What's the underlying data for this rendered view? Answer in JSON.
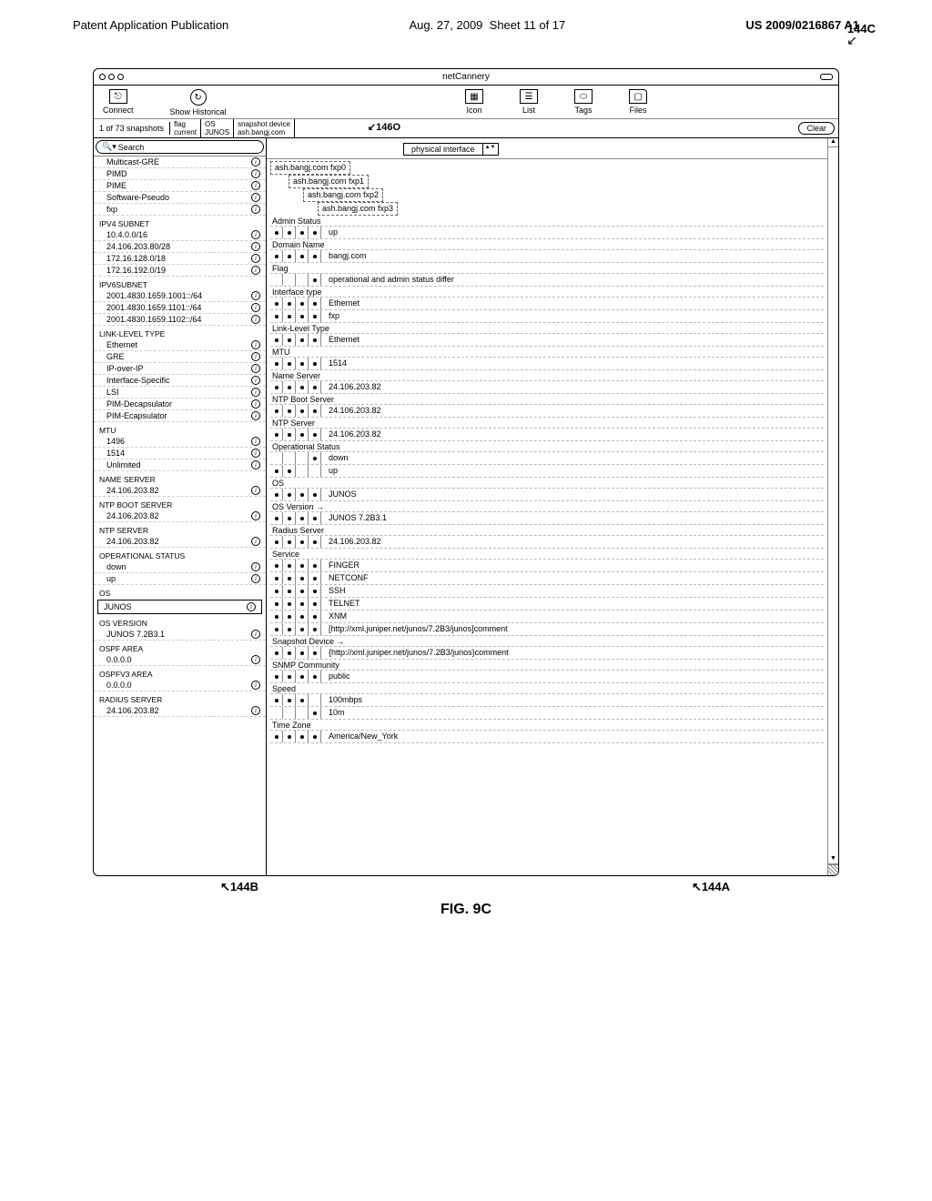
{
  "page_header": {
    "left": "Patent Application Publication",
    "date": "Aug. 27, 2009",
    "sheet": "Sheet 11 of 17",
    "docnum": "US 2009/0216867 A1"
  },
  "figure": {
    "caption": "FIG. 9C",
    "callout_144c": "144C",
    "callout_146o": "146O",
    "callout_144b": "144B",
    "callout_144a": "144A"
  },
  "window": {
    "title": "netCannery"
  },
  "toolbar": {
    "connect": "Connect",
    "show_historical": "Show Historical",
    "icon": "Icon",
    "list": "List",
    "tags": "Tags",
    "files": "Files"
  },
  "subheader": {
    "snapshot_info": "1 of 73 snapshots",
    "flag_hdr": "flag",
    "flag_val": "current",
    "os_hdr": "OS",
    "os_val": "JUNOS",
    "dev_hdr": "snapshot device",
    "dev_val": "ash.bangj.com",
    "clear": "Clear"
  },
  "search": {
    "placeholder": "Search",
    "icon_glyph": "🔍"
  },
  "selector": {
    "label": "physical interface"
  },
  "sidebar": {
    "s1": [
      {
        "l": "Multicast-GRE",
        "ic": true
      },
      {
        "l": "PIMD",
        "ic": true
      },
      {
        "l": "PIME",
        "ic": true
      },
      {
        "l": "Software-Pseudo",
        "ic": true
      },
      {
        "l": "fxp",
        "ic": true
      }
    ],
    "s2_title": "IPV4 SUBNET",
    "s2": [
      {
        "l": "10.4.0.0/16",
        "ic": true
      },
      {
        "l": "24.106.203.80/28",
        "ic": true
      },
      {
        "l": "172.16.128.0/18",
        "ic": true
      },
      {
        "l": "172.16.192.0/19",
        "ic": true
      }
    ],
    "s3_title": "IPV6SUBNET",
    "s3": [
      {
        "l": "2001.4830.1659.1001::/64",
        "ic": true
      },
      {
        "l": "2001.4830.1659.1101::/64",
        "ic": true
      },
      {
        "l": "2001.4830.1659.1102::/64",
        "ic": true
      }
    ],
    "s4_title": "LINK-LEVEL TYPE",
    "s4": [
      {
        "l": "Ethernet",
        "ic": true
      },
      {
        "l": "GRE",
        "ic": true
      },
      {
        "l": "IP-over-IP",
        "ic": true
      },
      {
        "l": "Interface-Specific",
        "ic": true
      },
      {
        "l": "LSI",
        "ic": true
      },
      {
        "l": "PIM-Decapsulator",
        "ic": true
      },
      {
        "l": "PIM-Ecapsulator",
        "ic": true
      }
    ],
    "s5_title": "MTU",
    "s5": [
      {
        "l": "1496",
        "ic": true
      },
      {
        "l": "1514",
        "ic": true
      },
      {
        "l": "Unlimited",
        "ic": true
      }
    ],
    "s6_title": "NAME SERVER",
    "s6": [
      {
        "l": "24.106.203.82",
        "ic": true
      }
    ],
    "s7_title": "NTP BOOT SERVER",
    "s7": [
      {
        "l": "24.106.203.82",
        "ic": true
      }
    ],
    "s8_title": "NTP SERVER",
    "s8": [
      {
        "l": "24.106.203.82",
        "ic": true
      }
    ],
    "s9_title": "OPERATIONAL STATUS",
    "s9": [
      {
        "l": "down",
        "ic": true
      },
      {
        "l": "up",
        "ic": true
      }
    ],
    "s10_title": "OS",
    "s10": [
      {
        "l": "JUNOS",
        "ic": true
      }
    ],
    "s11_title": "OS VERSION",
    "s11": [
      {
        "l": "JUNOS 7.2B3.1",
        "ic": true
      }
    ],
    "s12_title": "OSPF AREA",
    "s12": [
      {
        "l": "0.0.0.0",
        "ic": true
      }
    ],
    "s13_title": "OSPFV3 AREA",
    "s13": [
      {
        "l": "0.0.0.0",
        "ic": true
      }
    ],
    "s14_title": "RADIUS SERVER",
    "s14": [
      {
        "l": "24.106.203.82",
        "ic": true
      }
    ]
  },
  "tree": {
    "root": "ash.bangj.com fxp0",
    "c1": "ash.bangj.com fxp1",
    "c2": "ash.bangj.com fxp2",
    "c3": "ash.bangj.com fxp3",
    "attrs": [
      {
        "label": "Admin Status",
        "rows": [
          {
            "d": [
              1,
              1,
              1,
              1
            ],
            "v": "up"
          }
        ]
      },
      {
        "label": "Domain Name",
        "rows": [
          {
            "d": [
              1,
              1,
              1,
              1
            ],
            "v": "bangj.com"
          }
        ]
      },
      {
        "label": "Flag",
        "rows": [
          {
            "d": [
              0,
              0,
              0,
              1
            ],
            "v": "operational and admin status differ"
          }
        ]
      },
      {
        "label": "Interface type",
        "rows": [
          {
            "d": [
              1,
              1,
              1,
              1
            ],
            "v": "Ethernet"
          },
          {
            "d": [
              1,
              1,
              1,
              1
            ],
            "v": "fxp"
          }
        ]
      },
      {
        "label": "Link-Level Type",
        "rows": [
          {
            "d": [
              1,
              1,
              1,
              1
            ],
            "v": "Ethernet"
          }
        ]
      },
      {
        "label": "MTU",
        "rows": [
          {
            "d": [
              1,
              1,
              1,
              1
            ],
            "v": "1514"
          }
        ]
      },
      {
        "label": "Name Server",
        "rows": [
          {
            "d": [
              1,
              1,
              1,
              1
            ],
            "v": "24.106.203.82"
          }
        ]
      },
      {
        "label": "NTP Boot Server",
        "rows": [
          {
            "d": [
              1,
              1,
              1,
              1
            ],
            "v": "24.106.203.82"
          }
        ]
      },
      {
        "label": "NTP Server",
        "rows": [
          {
            "d": [
              1,
              1,
              1,
              1
            ],
            "v": "24.106.203.82"
          }
        ]
      },
      {
        "label": "Operational Status",
        "rows": [
          {
            "d": [
              0,
              0,
              0,
              1
            ],
            "v": "down"
          },
          {
            "d": [
              1,
              1,
              0,
              0
            ],
            "v": "up"
          }
        ]
      },
      {
        "label": "OS",
        "rows": [
          {
            "d": [
              1,
              1,
              1,
              1
            ],
            "v": "JUNOS"
          }
        ]
      },
      {
        "label": "OS Version →",
        "rows": [
          {
            "d": [
              1,
              1,
              1,
              1
            ],
            "v": "JUNOS 7.2B3.1"
          }
        ]
      },
      {
        "label": "Radius Server",
        "rows": [
          {
            "d": [
              1,
              1,
              1,
              1
            ],
            "v": "24.106.203.82"
          }
        ]
      },
      {
        "label": "Service",
        "rows": [
          {
            "d": [
              1,
              1,
              1,
              1
            ],
            "v": "FINGER"
          },
          {
            "d": [
              1,
              1,
              1,
              1
            ],
            "v": "NETCONF"
          },
          {
            "d": [
              1,
              1,
              1,
              1
            ],
            "v": "SSH"
          },
          {
            "d": [
              1,
              1,
              1,
              1
            ],
            "v": "TELNET"
          },
          {
            "d": [
              1,
              1,
              1,
              1
            ],
            "v": "XNM"
          },
          {
            "d": [
              1,
              1,
              1,
              1
            ],
            "v": "[http://xml.juniper.net/junos/7.2B3/junos]comment"
          }
        ]
      },
      {
        "label": "Snapshot Device →",
        "rows": [
          {
            "d": [
              1,
              1,
              1,
              1
            ],
            "v": "{http://xml.juniper.net/junos/7.2B3/junos}comment"
          }
        ]
      },
      {
        "label": "SNMP Community",
        "rows": [
          {
            "d": [
              1,
              1,
              1,
              1
            ],
            "v": "public"
          }
        ]
      },
      {
        "label": "Speed",
        "rows": [
          {
            "d": [
              1,
              1,
              1,
              0
            ],
            "v": "100mbps"
          },
          {
            "d": [
              0,
              0,
              0,
              1
            ],
            "v": "10m"
          }
        ]
      },
      {
        "label": "Time Zone",
        "rows": [
          {
            "d": [
              1,
              1,
              1,
              1
            ],
            "v": "America/New_York"
          }
        ]
      }
    ]
  }
}
